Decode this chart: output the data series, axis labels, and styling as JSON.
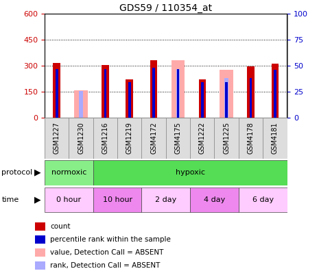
{
  "title": "GDS59 / 110354_at",
  "samples": [
    "GSM1227",
    "GSM1230",
    "GSM1216",
    "GSM1219",
    "GSM4172",
    "GSM4175",
    "GSM1222",
    "GSM1225",
    "GSM4178",
    "GSM4181"
  ],
  "count_values": [
    315,
    0,
    305,
    220,
    330,
    0,
    220,
    0,
    298,
    310
  ],
  "rank_pct_values": [
    47,
    0,
    47,
    34,
    48,
    47,
    34,
    34,
    38,
    46
  ],
  "absent_value_values": [
    0,
    160,
    0,
    0,
    0,
    330,
    0,
    275,
    0,
    0
  ],
  "absent_rank_pct": [
    0,
    26,
    0,
    0,
    0,
    47,
    0,
    38,
    0,
    0
  ],
  "count_color": "#cc0000",
  "rank_color": "#0000cc",
  "absent_value_color": "#ffaaaa",
  "absent_rank_color": "#aaaaff",
  "ylim_left": [
    0,
    600
  ],
  "ylim_right": [
    0,
    100
  ],
  "yticks_left": [
    0,
    150,
    300,
    450,
    600
  ],
  "yticks_right": [
    0,
    25,
    50,
    75,
    100
  ],
  "protocol_groups": [
    {
      "label": "normoxic",
      "start": 0,
      "end": 2
    },
    {
      "label": "hypoxic",
      "start": 2,
      "end": 10
    }
  ],
  "protocol_colors": [
    "#88ee88",
    "#55dd55"
  ],
  "time_groups": [
    {
      "label": "0 hour",
      "start": 0,
      "end": 2
    },
    {
      "label": "10 hour",
      "start": 2,
      "end": 4
    },
    {
      "label": "2 day",
      "start": 4,
      "end": 6
    },
    {
      "label": "4 day",
      "start": 6,
      "end": 8
    },
    {
      "label": "6 day",
      "start": 8,
      "end": 10
    }
  ],
  "time_colors": [
    "#ffccff",
    "#ee88ee",
    "#ffccff",
    "#ee88ee",
    "#ffccff"
  ]
}
